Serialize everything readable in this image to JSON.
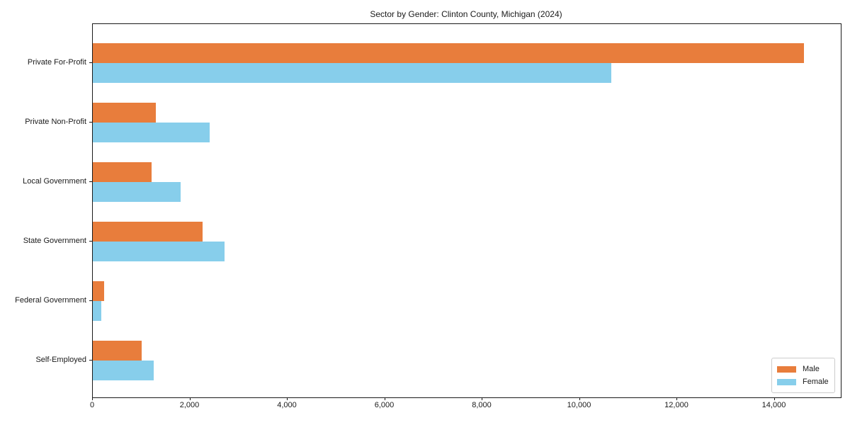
{
  "chart_data": {
    "type": "bar",
    "orientation": "horizontal",
    "title": "Sector by Gender: Clinton County, Michigan (2024)",
    "categories": [
      "Private For-Profit",
      "Private Non-Profit",
      "Local Government",
      "State Government",
      "Federal Government",
      "Self-Employed"
    ],
    "series": [
      {
        "name": "Male",
        "color": "#E87D3C",
        "values": [
          14600,
          1300,
          1200,
          2250,
          230,
          1000
        ]
      },
      {
        "name": "Female",
        "color": "#87CEEB",
        "values": [
          10650,
          2400,
          1800,
          2700,
          170,
          1250
        ]
      }
    ],
    "xlabel": "",
    "ylabel": "",
    "xlim": [
      0,
      15360
    ],
    "xticks": [
      0,
      2000,
      4000,
      6000,
      8000,
      10000,
      12000,
      14000
    ],
    "xtick_labels": [
      "0",
      "2,000",
      "4,000",
      "6,000",
      "8,000",
      "10,000",
      "12,000",
      "14,000"
    ],
    "grid": false,
    "legend": {
      "position": "lower right",
      "entries": [
        "Male",
        "Female"
      ]
    }
  }
}
